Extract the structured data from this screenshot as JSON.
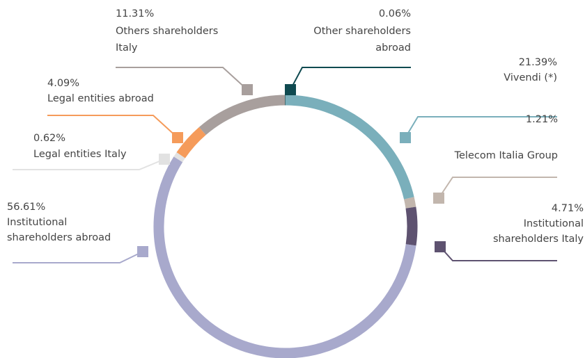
{
  "chart_data": {
    "type": "donut",
    "categories": [
      [
        "Vivendi (*)"
      ],
      [
        "Telecom Italia Group"
      ],
      [
        "Institutional",
        "shareholders Italy"
      ],
      [
        "Institutional",
        "shareholders abroad"
      ],
      [
        "Legal entities Italy"
      ],
      [
        "Legal entities abroad"
      ],
      [
        "Others shareholders",
        "Italy"
      ],
      [
        "Other shareholders",
        "abroad"
      ]
    ],
    "values": [
      21.39,
      1.21,
      4.71,
      56.61,
      0.62,
      4.09,
      11.31,
      0.06
    ],
    "value_labels": [
      "21.39%",
      "1.21%",
      "4.71%",
      "56.61%",
      "0.62%",
      "4.09%",
      "11.31%",
      "0.06%"
    ],
    "colors": [
      "#7aafbb",
      "#c2b6ad",
      "#5e5270",
      "#a8a9cc",
      "#e2e2e2",
      "#f59b5a",
      "#a89f9d",
      "#0f4a50"
    ]
  }
}
